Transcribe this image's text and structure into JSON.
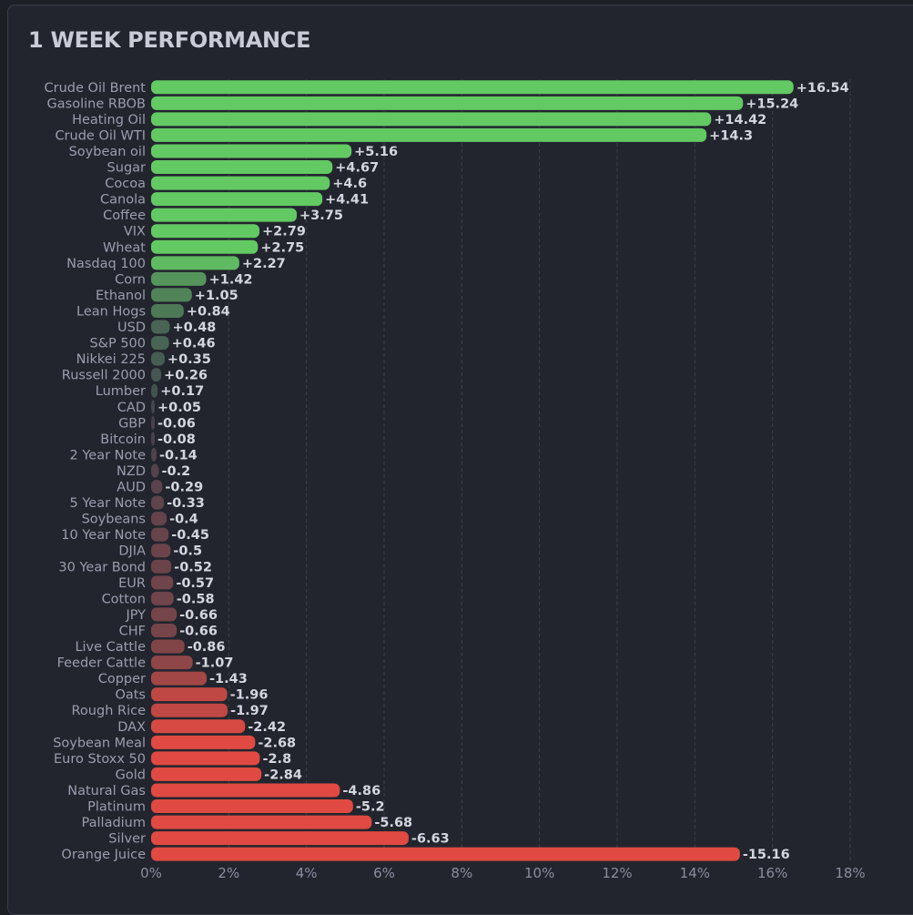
{
  "chart_data": {
    "type": "bar",
    "orientation": "horizontal",
    "title": "1 WEEK PERFORMANCE",
    "xlabel": "",
    "ylabel": "",
    "x_tick_labels": [
      "0%",
      "2%",
      "4%",
      "6%",
      "8%",
      "10%",
      "12%",
      "14%",
      "16%",
      "18%"
    ],
    "xlim": [
      0,
      18
    ],
    "bar_length": "absolute value",
    "grid": "vertical dashed",
    "colors": {
      "positive": "#63c963",
      "negative": "#e04a42",
      "neutral": "#3f424d"
    },
    "categories": [
      "Crude Oil Brent",
      "Gasoline RBOB",
      "Heating Oil",
      "Crude Oil WTI",
      "Soybean oil",
      "Sugar",
      "Cocoa",
      "Canola",
      "Coffee",
      "VIX",
      "Wheat",
      "Nasdaq 100",
      "Corn",
      "Ethanol",
      "Lean Hogs",
      "USD",
      "S&P 500",
      "Nikkei 225",
      "Russell 2000",
      "Lumber",
      "CAD",
      "GBP",
      "Bitcoin",
      "2 Year Note",
      "NZD",
      "AUD",
      "5 Year Note",
      "Soybeans",
      "10 Year Note",
      "DJIA",
      "30 Year Bond",
      "EUR",
      "Cotton",
      "JPY",
      "CHF",
      "Live Cattle",
      "Feeder Cattle",
      "Copper",
      "Oats",
      "Rough Rice",
      "DAX",
      "Soybean Meal",
      "Euro Stoxx 50",
      "Gold",
      "Natural Gas",
      "Platinum",
      "Palladium",
      "Silver",
      "Orange Juice"
    ],
    "values": [
      16.54,
      15.24,
      14.42,
      14.3,
      5.16,
      4.67,
      4.6,
      4.41,
      3.75,
      2.79,
      2.75,
      2.27,
      1.42,
      1.05,
      0.84,
      0.48,
      0.46,
      0.35,
      0.26,
      0.17,
      0.05,
      -0.06,
      -0.08,
      -0.14,
      -0.2,
      -0.29,
      -0.33,
      -0.4,
      -0.45,
      -0.5,
      -0.52,
      -0.57,
      -0.58,
      -0.66,
      -0.66,
      -0.86,
      -1.07,
      -1.43,
      -1.96,
      -1.97,
      -2.42,
      -2.68,
      -2.8,
      -2.84,
      -4.86,
      -5.2,
      -5.68,
      -6.63,
      -15.16
    ],
    "value_labels": [
      "+16.54",
      "+15.24",
      "+14.42",
      "+14.3",
      "+5.16",
      "+4.67",
      "+4.6",
      "+4.41",
      "+3.75",
      "+2.79",
      "+2.75",
      "+2.27",
      "+1.42",
      "+1.05",
      "+0.84",
      "+0.48",
      "+0.46",
      "+0.35",
      "+0.26",
      "+0.17",
      "+0.05",
      "-0.06",
      "-0.08",
      "-0.14",
      "-0.2",
      "-0.29",
      "-0.33",
      "-0.4",
      "-0.45",
      "-0.5",
      "-0.52",
      "-0.57",
      "-0.58",
      "-0.66",
      "-0.66",
      "-0.86",
      "-1.07",
      "-1.43",
      "-1.96",
      "-1.97",
      "-2.42",
      "-2.68",
      "-2.8",
      "-2.84",
      "-4.86",
      "-5.2",
      "-5.68",
      "-6.63",
      "-15.16"
    ]
  }
}
